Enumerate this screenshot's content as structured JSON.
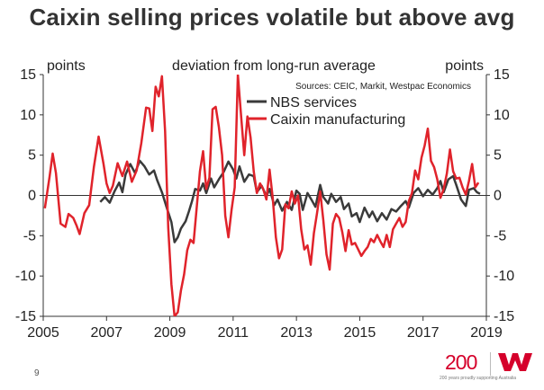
{
  "page": {
    "title": "Caixin selling prices volatile but above avg",
    "page_number": "9",
    "logo_number": "200",
    "logo_tagline": "200 years proudly supporting Australia"
  },
  "colors": {
    "nbs": "#3a3a3a",
    "caixin": "#e0232b",
    "axis": "#333333",
    "text": "#222222"
  },
  "chart_data": {
    "type": "line",
    "left_unit_label": "points",
    "right_unit_label": "points",
    "subtitle": "deviation from long-run average",
    "source": "Sources: CEIC, Markit, Westpac Economics",
    "ylim": [
      -15,
      15
    ],
    "y_ticks": [
      15,
      10,
      5,
      0,
      -5,
      -10,
      -15
    ],
    "y_tick_labels": [
      "15",
      "10",
      "5",
      "0",
      "-5",
      "-10",
      "-15"
    ],
    "xlim": [
      2005,
      2019
    ],
    "x_ticks": [
      2005,
      2007,
      2009,
      2011,
      2013,
      2015,
      2017,
      2019
    ],
    "x_tick_labels": [
      "2005",
      "2007",
      "2009",
      "2011",
      "2013",
      "2015",
      "2017",
      "2019"
    ],
    "legend_position": "top-center",
    "series": [
      {
        "name": "NBS services",
        "color_key": "nbs",
        "points": [
          [
            2006.8,
            -0.8
          ],
          [
            2006.95,
            -0.2
          ],
          [
            2007.1,
            -0.9
          ],
          [
            2007.25,
            0.5
          ],
          [
            2007.4,
            1.6
          ],
          [
            2007.5,
            0.4
          ],
          [
            2007.6,
            2.6
          ],
          [
            2007.75,
            3.9
          ],
          [
            2007.9,
            2.8
          ],
          [
            2008.05,
            4.3
          ],
          [
            2008.2,
            3.6
          ],
          [
            2008.35,
            2.6
          ],
          [
            2008.5,
            3.1
          ],
          [
            2008.6,
            1.9
          ],
          [
            2008.75,
            0.4
          ],
          [
            2008.9,
            -1.5
          ],
          [
            2009.05,
            -3.3
          ],
          [
            2009.15,
            -5.8
          ],
          [
            2009.25,
            -5.2
          ],
          [
            2009.35,
            -4.1
          ],
          [
            2009.5,
            -3.2
          ],
          [
            2009.6,
            -2.0
          ],
          [
            2009.7,
            -0.7
          ],
          [
            2009.8,
            0.8
          ],
          [
            2009.95,
            0.6
          ],
          [
            2010.05,
            1.5
          ],
          [
            2010.15,
            0.3
          ],
          [
            2010.3,
            2.1
          ],
          [
            2010.4,
            1.0
          ],
          [
            2010.55,
            2.0
          ],
          [
            2010.7,
            2.9
          ],
          [
            2010.85,
            4.2
          ],
          [
            2011.0,
            3.2
          ],
          [
            2011.1,
            2.1
          ],
          [
            2011.2,
            3.6
          ],
          [
            2011.35,
            1.7
          ],
          [
            2011.5,
            2.6
          ],
          [
            2011.65,
            2.4
          ],
          [
            2011.75,
            0.4
          ],
          [
            2011.9,
            1.2
          ],
          [
            2012.05,
            -0.1
          ],
          [
            2012.15,
            0.8
          ],
          [
            2012.3,
            -1.2
          ],
          [
            2012.4,
            -0.5
          ],
          [
            2012.55,
            -1.9
          ],
          [
            2012.7,
            -0.8
          ],
          [
            2012.85,
            -1.8
          ],
          [
            2013.0,
            0.6
          ],
          [
            2013.1,
            0.2
          ],
          [
            2013.2,
            -1.8
          ],
          [
            2013.35,
            0.3
          ],
          [
            2013.5,
            -0.7
          ],
          [
            2013.6,
            -1.4
          ],
          [
            2013.75,
            1.3
          ],
          [
            2013.85,
            -0.2
          ],
          [
            2014.0,
            -1.0
          ],
          [
            2014.1,
            0.2
          ],
          [
            2014.25,
            -0.8
          ],
          [
            2014.4,
            -0.2
          ],
          [
            2014.5,
            -1.7
          ],
          [
            2014.65,
            -1.0
          ],
          [
            2014.75,
            -2.6
          ],
          [
            2014.9,
            -2.2
          ],
          [
            2015.0,
            -3.3
          ],
          [
            2015.15,
            -1.5
          ],
          [
            2015.3,
            -2.7
          ],
          [
            2015.4,
            -2.0
          ],
          [
            2015.55,
            -3.2
          ],
          [
            2015.7,
            -2.2
          ],
          [
            2015.85,
            -3.0
          ],
          [
            2016.0,
            -1.7
          ],
          [
            2016.15,
            -2.0
          ],
          [
            2016.3,
            -1.3
          ],
          [
            2016.45,
            -0.7
          ],
          [
            2016.55,
            -1.5
          ],
          [
            2016.7,
            0.3
          ],
          [
            2016.85,
            0.9
          ],
          [
            2017.0,
            -0.1
          ],
          [
            2017.15,
            0.7
          ],
          [
            2017.3,
            0.1
          ],
          [
            2017.45,
            0.9
          ],
          [
            2017.55,
            1.8
          ],
          [
            2017.65,
            0.4
          ],
          [
            2017.8,
            2.0
          ],
          [
            2017.95,
            2.4
          ],
          [
            2018.05,
            1.3
          ],
          [
            2018.2,
            -0.5
          ],
          [
            2018.35,
            -1.3
          ],
          [
            2018.45,
            0.7
          ],
          [
            2018.6,
            0.9
          ],
          [
            2018.7,
            0.4
          ],
          [
            2018.8,
            0.2
          ]
        ]
      },
      {
        "name": "Caixin manufacturing",
        "color_key": "caixin",
        "points": [
          [
            2005.05,
            -1.6
          ],
          [
            2005.2,
            2.3
          ],
          [
            2005.3,
            5.2
          ],
          [
            2005.4,
            2.8
          ],
          [
            2005.55,
            -3.5
          ],
          [
            2005.7,
            -3.9
          ],
          [
            2005.8,
            -2.3
          ],
          [
            2005.95,
            -2.8
          ],
          [
            2006.05,
            -3.7
          ],
          [
            2006.15,
            -4.8
          ],
          [
            2006.3,
            -2.2
          ],
          [
            2006.45,
            -1.2
          ],
          [
            2006.6,
            3.5
          ],
          [
            2006.75,
            7.3
          ],
          [
            2006.9,
            4.0
          ],
          [
            2007.0,
            1.5
          ],
          [
            2007.1,
            0.3
          ],
          [
            2007.2,
            1.2
          ],
          [
            2007.35,
            4.0
          ],
          [
            2007.5,
            2.4
          ],
          [
            2007.65,
            4.2
          ],
          [
            2007.8,
            1.7
          ],
          [
            2007.95,
            3.1
          ],
          [
            2008.1,
            6.5
          ],
          [
            2008.25,
            10.9
          ],
          [
            2008.35,
            10.8
          ],
          [
            2008.45,
            8.0
          ],
          [
            2008.55,
            13.5
          ],
          [
            2008.65,
            12.3
          ],
          [
            2008.75,
            14.8
          ],
          [
            2008.85,
            8.0
          ],
          [
            2008.95,
            -4.0
          ],
          [
            2009.05,
            -11.0
          ],
          [
            2009.15,
            -15.0
          ],
          [
            2009.25,
            -14.5
          ],
          [
            2009.35,
            -11.8
          ],
          [
            2009.45,
            -9.8
          ],
          [
            2009.55,
            -6.8
          ],
          [
            2009.65,
            -5.5
          ],
          [
            2009.75,
            -5.9
          ],
          [
            2009.85,
            -1.5
          ],
          [
            2009.95,
            3.0
          ],
          [
            2010.05,
            5.5
          ],
          [
            2010.15,
            0.8
          ],
          [
            2010.25,
            2.2
          ],
          [
            2010.35,
            10.7
          ],
          [
            2010.45,
            11.0
          ],
          [
            2010.55,
            8.5
          ],
          [
            2010.65,
            5.0
          ],
          [
            2010.75,
            -2.5
          ],
          [
            2010.85,
            -5.2
          ],
          [
            2010.95,
            -1.8
          ],
          [
            2011.05,
            1.0
          ],
          [
            2011.15,
            15.0
          ],
          [
            2011.25,
            10.0
          ],
          [
            2011.35,
            5.0
          ],
          [
            2011.45,
            9.8
          ],
          [
            2011.55,
            7.2
          ],
          [
            2011.65,
            3.0
          ],
          [
            2011.75,
            0.3
          ],
          [
            2011.85,
            1.5
          ],
          [
            2011.95,
            0.8
          ],
          [
            2012.05,
            -0.5
          ],
          [
            2012.15,
            3.2
          ],
          [
            2012.25,
            -0.3
          ],
          [
            2012.35,
            -5.2
          ],
          [
            2012.45,
            -7.8
          ],
          [
            2012.55,
            -6.7
          ],
          [
            2012.65,
            -1.1
          ],
          [
            2012.75,
            -1.6
          ],
          [
            2012.85,
            0.5
          ],
          [
            2012.95,
            -1.0
          ],
          [
            2013.05,
            0.0
          ],
          [
            2013.15,
            -4.2
          ],
          [
            2013.25,
            -6.7
          ],
          [
            2013.35,
            -6.2
          ],
          [
            2013.45,
            -8.6
          ],
          [
            2013.55,
            -4.7
          ],
          [
            2013.65,
            -2.2
          ],
          [
            2013.75,
            0.5
          ],
          [
            2013.85,
            -3.1
          ],
          [
            2013.95,
            -7.3
          ],
          [
            2014.05,
            -9.2
          ],
          [
            2014.15,
            -3.5
          ],
          [
            2014.25,
            -2.3
          ],
          [
            2014.35,
            -2.8
          ],
          [
            2014.45,
            -4.6
          ],
          [
            2014.55,
            -6.9
          ],
          [
            2014.65,
            -4.3
          ],
          [
            2014.75,
            -6.1
          ],
          [
            2014.85,
            -5.9
          ],
          [
            2014.95,
            -6.7
          ],
          [
            2015.05,
            -7.5
          ],
          [
            2015.15,
            -6.9
          ],
          [
            2015.25,
            -6.4
          ],
          [
            2015.35,
            -5.4
          ],
          [
            2015.45,
            -5.8
          ],
          [
            2015.55,
            -4.9
          ],
          [
            2015.65,
            -5.7
          ],
          [
            2015.75,
            -6.4
          ],
          [
            2015.85,
            -4.9
          ],
          [
            2015.95,
            -6.4
          ],
          [
            2016.05,
            -4.2
          ],
          [
            2016.15,
            -3.5
          ],
          [
            2016.25,
            -2.8
          ],
          [
            2016.35,
            -3.9
          ],
          [
            2016.45,
            -3.3
          ],
          [
            2016.55,
            -0.7
          ],
          [
            2016.65,
            0.3
          ],
          [
            2016.75,
            3.1
          ],
          [
            2016.85,
            2.0
          ],
          [
            2016.95,
            4.7
          ],
          [
            2017.05,
            6.2
          ],
          [
            2017.15,
            8.3
          ],
          [
            2017.25,
            4.3
          ],
          [
            2017.35,
            3.5
          ],
          [
            2017.45,
            2.0
          ],
          [
            2017.55,
            -0.3
          ],
          [
            2017.65,
            0.8
          ],
          [
            2017.75,
            2.7
          ],
          [
            2017.85,
            5.7
          ],
          [
            2017.95,
            3.0
          ],
          [
            2018.05,
            2.1
          ],
          [
            2018.15,
            2.2
          ],
          [
            2018.25,
            1.0
          ],
          [
            2018.35,
            0.1
          ],
          [
            2018.45,
            1.8
          ],
          [
            2018.55,
            3.9
          ],
          [
            2018.65,
            1.0
          ],
          [
            2018.75,
            1.6
          ]
        ]
      }
    ]
  }
}
